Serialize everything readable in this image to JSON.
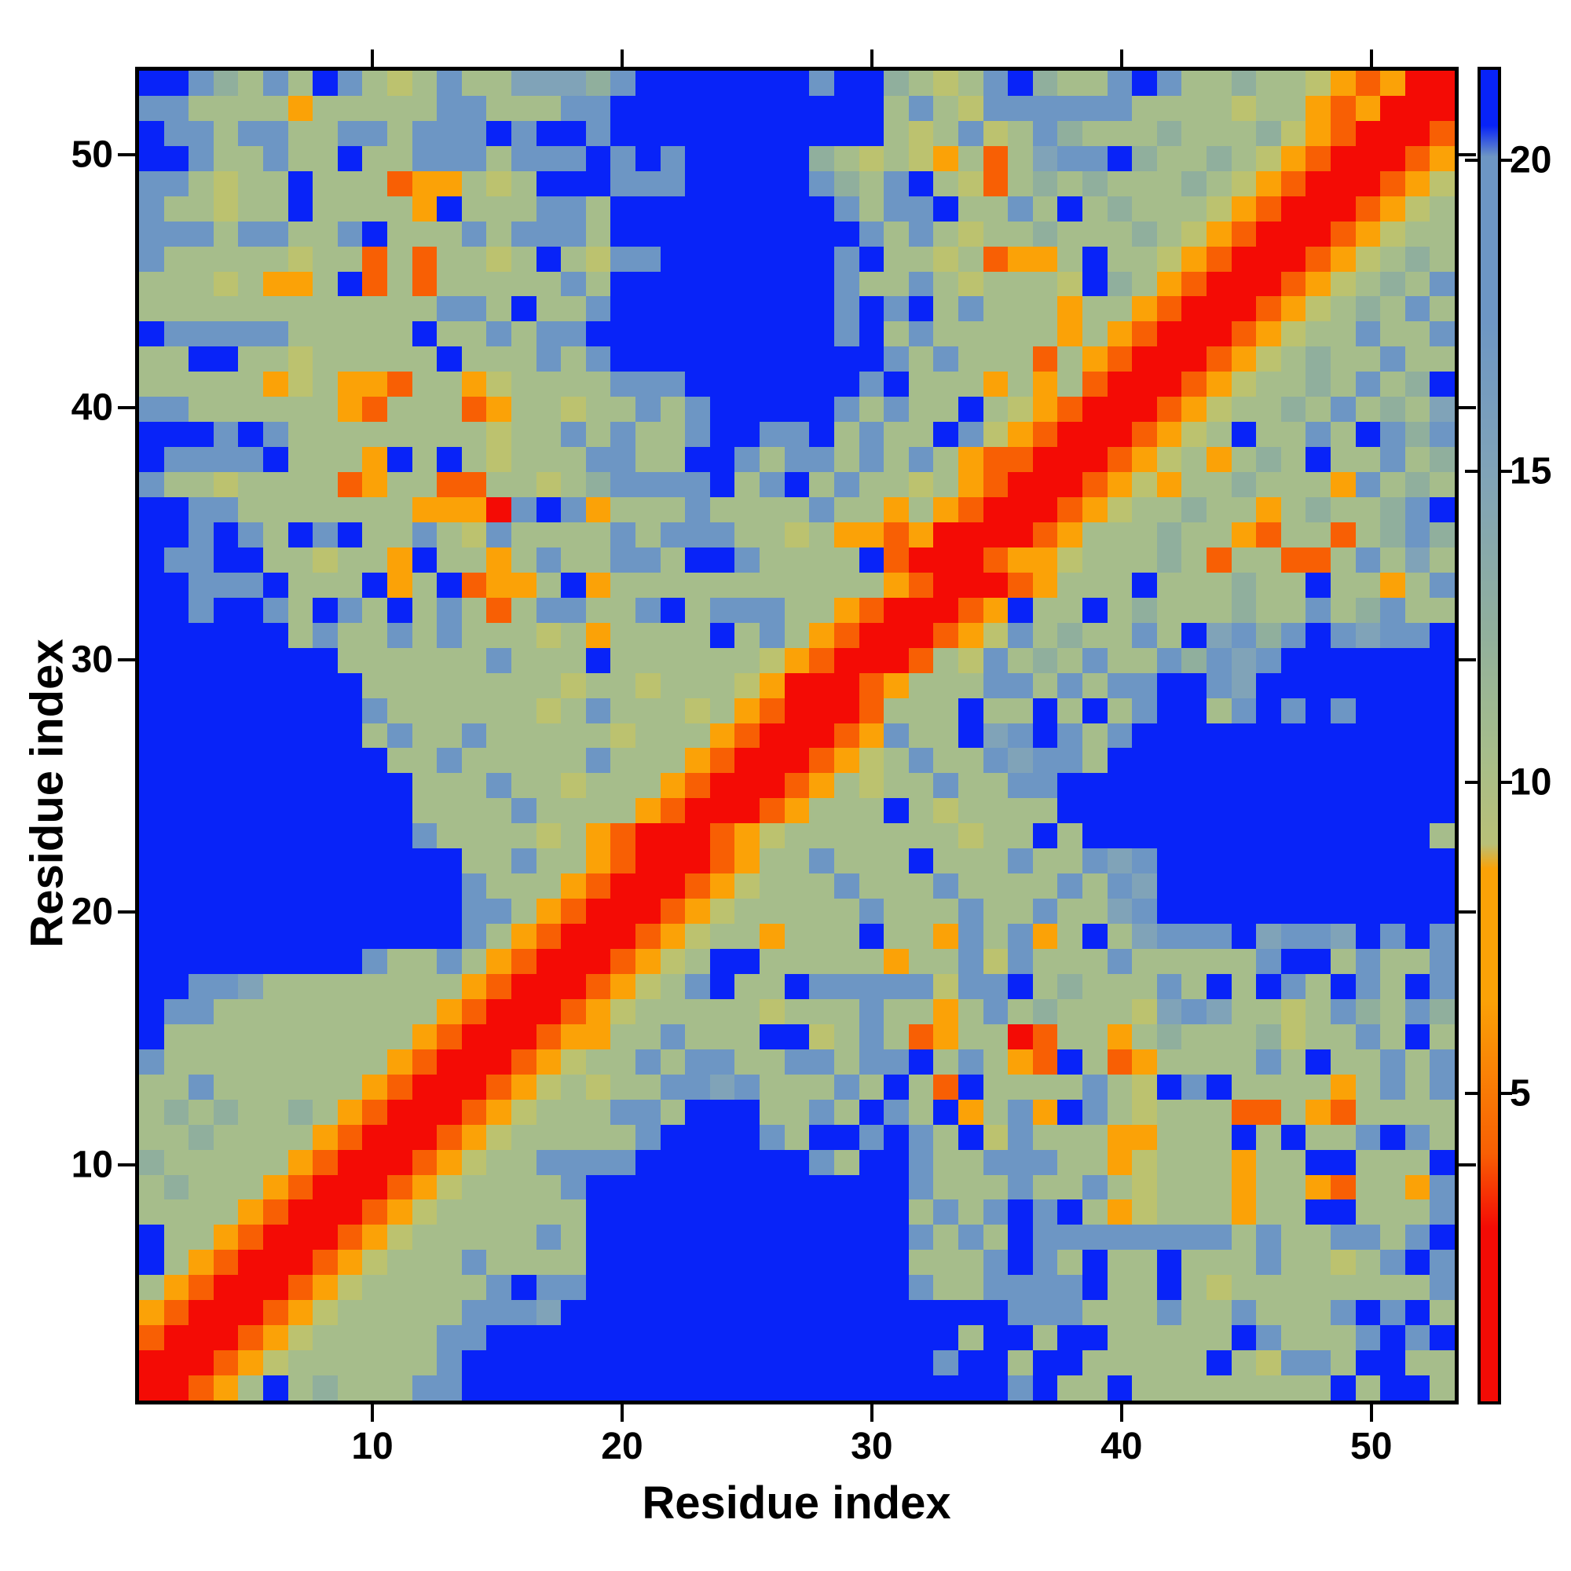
{
  "figure": {
    "xlabel": "Residue index",
    "ylabel": "Residue index"
  },
  "axes": {
    "x_ticks": [
      10,
      20,
      30,
      40,
      50
    ],
    "y_ticks": [
      10,
      20,
      30,
      40,
      50
    ],
    "n_residues": 53
  },
  "colorbar": {
    "tick_labels": [
      20,
      15,
      10,
      5
    ],
    "vmin": 0,
    "vmax": 21.5,
    "gradient_stops_value_color": [
      [
        21.5,
        "#0823f8"
      ],
      [
        20.6,
        "#0823f8"
      ],
      [
        20.1,
        "#6d96c4"
      ],
      [
        17.5,
        "#6d96c4"
      ],
      [
        15.0,
        "#80a3b8"
      ],
      [
        12.5,
        "#90af9d"
      ],
      [
        10.5,
        "#a6bd8b"
      ],
      [
        9.0,
        "#b9c077"
      ],
      [
        8.6,
        "#fba207"
      ],
      [
        6.5,
        "#fba207"
      ],
      [
        4.0,
        "#f85f04"
      ],
      [
        2.8,
        "#f40b05"
      ],
      [
        0.0,
        "#f40b05"
      ]
    ]
  },
  "chart_data": {
    "type": "heatmap",
    "title": "",
    "xlabel": "Residue index",
    "ylabel": "Residue index",
    "x_range": [
      1,
      53
    ],
    "y_range": [
      1,
      53
    ],
    "grid": "53x53 residue-residue distance-like matrix; symmetric; red diagonal band (low values) with orange flanks; deep blue = values above colorbar max (~21)",
    "value_bins": {
      "R": {
        "value": 1.5,
        "color": "#f40b05",
        "meaning": "0-3 (diagonal / closest)"
      },
      "r": {
        "value": 4.0,
        "color": "#f85f04",
        "meaning": "3-5"
      },
      "o": {
        "value": 6.5,
        "color": "#fba207",
        "meaning": "5-8.5"
      },
      "k": {
        "value": 9.0,
        "color": "#bcc26f",
        "meaning": "8.5-10"
      },
      "s": {
        "value": 11.0,
        "color": "#a6bd8b",
        "meaning": "10-12"
      },
      "g": {
        "value": 13.0,
        "color": "#90af9d",
        "meaning": "12-14"
      },
      "l": {
        "value": 15.5,
        "color": "#80a3b8",
        "meaning": "14-16.5"
      },
      "b": {
        "value": 18.0,
        "color": "#6d96c4",
        "meaning": "16.5-20.5"
      },
      "B": {
        "value": 22.0,
        "color": "#0823f8",
        "meaning": ">20.5 (far / off-scale)"
      }
    },
    "rows_top_to_bottom_residue_53_to_1": [
      "BBbgsbsBbsksbsslllgbBBBBBBBbBBgsksbBgssbBbssgsskoroRR",
      "bbssssosssssbbsssbbBBBBBBBBBBBsbskbbbbbbsssskssoroRRR",
      "BbbsbbssbbsbbbBbBBbBBBBBBBBBBBsksbksbgsssgsssgkorRRRr",
      "BBbssbssBssbbbsbbbBbBbBBBBBgskskosrslbbBgssgskorRRRro",
      "bbskssBsssroosksBBBbbbBBBBBbgsbBskrsgsgsssgskorRRRrok",
      "bsskssBssssoBsssbbsBBBBBBBBBbsbbBssbsBsgssskorRRRroks",
      "bbbsbbssbBsssbsbbbsBBBBBBBBBBbsbskssgsssgskorRRRrokss",
      "bssssskssrsrssksBskbbBBBBBBBbBssksroosBsskorRRRroksgs",
      "sssksoosBrsrsssssbsBBBBBBBBBbssbskssskBgsorRRRroksgsb",
      "ssssssssssssbbsBssbBBBBBBBBBbBbBsbsssossorRRRroksgsbs",
      "BbbbbbsssssBssbsbbBBBBBBBBBBbBsbsssssosorRRRrokssbssb",
      "ssBBssksssssBsssbsbBBBBBBBBBBBbsbsssrsorRRRroksgssbss",
      "sssssoksoorssokssssbbbBBBBBBBbBsssososrRRRrokssgsbsgB",
      "bbssssssorsssrosskssbsbBBBBBbsbssBskorRRRrokssgsbsgsl",
      "BBBbBbsssssssskssbsbssbBBbbBsbssBbkorRRRroksBssbsBbgb",
      "BbbbbBsssoBsBsksssbbssBBbsbbsbsbsorrRRRroksosgsBssbsg",
      "bsskssssrossrrssksgbbbbBsbBsbssksorRRRrokossgsssobsgs",
      "BBbbsssssssoooRbBbosssbssssbssosorRRRrokssgssosgssgbB",
      "BBbBbsBbBssbskbssssbsbbbsskso oroRRRRrosssgssorssrsgbg",
      "BbbBBsskssoBssosbssbbsBBbssssкBrRRRrooksssgsrssrrsbsl",
      "BBbbbBsssBosBroosBosssssssssssorRRRrosssBsssgssBssosbs",
      "BBbBBbsBbsBsbsrsbbssbBsbbbssorRRRroBssBsgsssgssbsgbss",
      "BBBBBBsbssbsbsssksossssBsbsorRRRrokbsgssbsBlbgbBblbbB",
      "BBBBBBBBssssssbsssBsssssskorRRRrskbsgsbssbgblbBBBBBBB",
      "BBBBBBBBBssssssssksskssskoRRRrosssbbsbsbbBBblBBBBBBBB",
      "BBBBBBBBBbssssssksbsssksorRRRrsssBssBsBsbBBsbBbBbBBBB",
      "BBBBBBBBBsbssbsssssksssorRRRrobssBlbBbsbBBBBBBBBBBBBB",
      "BBBBBBBBBBssbsssssbsssorRRRroksbssblbbsBBBBBBBBBBBBBB",
      "BBBBBBBBBBBsssbssksssorRRRroskssbssbbBBBBBBBBBBBBBBBB",
      "BBBBBBBBBBBssssbssssorRRRrosssBskssssBBBBBBBBBBBBBBBB",
      "BBBBBBBBBBBbssssksкorRRRrokssssssskssBsBBBBBBBBBBBBBB",
      "BBBBBBBBBBBBBssbssorRRRrossbsssBsssbssblbBBBBBBBBBBBB",
      "BBBBBBBBBBBBBbsssorRRRroksssbsssbssssbsblBBBBBBBBBBBB",
      "BBBBBBBBBBBBBbbsorRRRroksssssbsssbssbsslbBBBBBBBBBBBB",
      "BBBBBBBBBBBBBbsorRRRrokssosssBssobsbosBslbbbBlbblBbBb",
      "BBBBBBBBBbssbsorRRRroksBBsssssossbkbsssbsssssbBBsbssb",
      "BBbblssssssssorRRRroksbBssBbbbbbkbbBsgsssbsBsBbsBbsBb",
      "BbbsssssssssorRRRroksssssksssbssosbsgsssklblssksbgsbg",
      "BssssssssssorRRRroossbsssBBksbsrossRrssosgsssgkssbsBs",
      "bsssssssssorRRRrokssbsbbssbbsbbBsbsorBsrossssbsBssbsb",
      "ssbssssssorRRRrokskssbblbsssbsBsrBssssbskBbBssssosbsb",
      "sgsgssgsorRRRroksssbbsBBBssbsBbsBosboBbsksssrrsorssss",
      "ssgssssorRRRroksssssbBBBBbsBBbBbsBkbsssoosssBsBssbBbs",
      "gsssssorRRRrokssbbbbBBBBBBBbsBBbssbbbssoksssossBBsssB",
      "sgsssorRRRrokssssbBBBBBBBBBBBBBbsssbssbsksssossorssob",
      "ssssorRRRrokssssssBBBBBBBBBBBBBsbsbBbBsoksssossBBsssb",
      "BssorRRRroksssssbsBBBBBBBBBBBBBbsbsBbbbbbbbbsbssbbsbBb",
      "BsorRRRroksssbssssBBBBBBBBBBBBBsssbBbsBssBsssbssksbBb",
      "sorRRRroksssssbBbbBBBBBBBBBBBBBbssbbbbBssBskssssssssb",
      "orRRRroksssssbbblBBBBBBBBBBBBBBBBBBbbbsssbssbsssbBbB",
      "rRRRroksssssbbBBBBBBBBBBBBBBBBBBBsBBsBBsssssBbsssbBbB",
      "RRRrokssssssbBBBBBBBBBBBBBBBBBBBbBBsBBsssssBskSbbsBB",
      "RRrosBsgsssbbBBBBBBBBBBBBBBBBBBBBBBbBssBssssssssBsBB"
    ]
  }
}
